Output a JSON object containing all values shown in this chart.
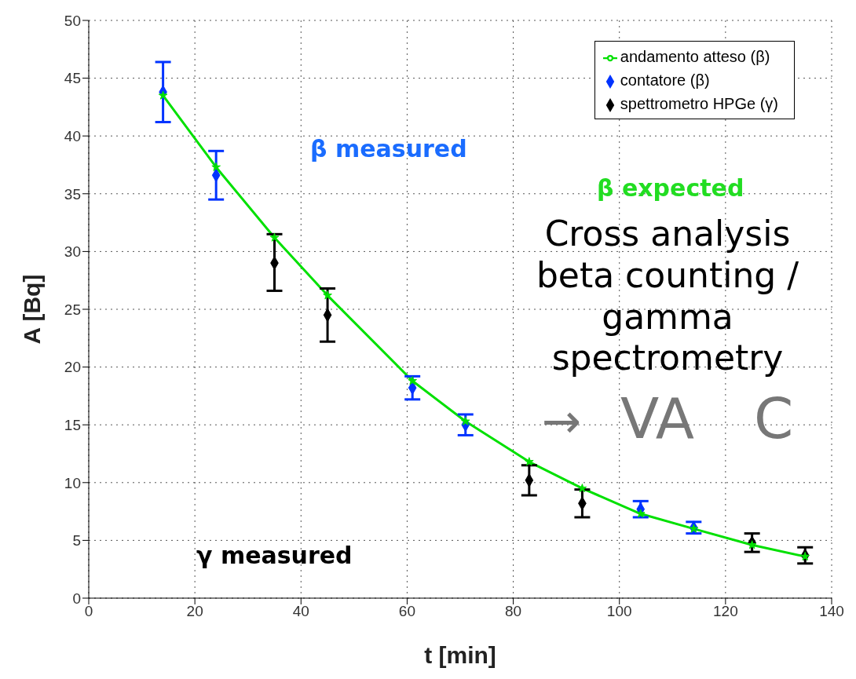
{
  "chart_data": {
    "type": "scatter",
    "xlabel": "t [min]",
    "ylabel": "A [Bq]",
    "xlim": [
      0,
      140
    ],
    "xticks": [
      0,
      20,
      40,
      60,
      80,
      100,
      120,
      140
    ],
    "ylim": [
      0,
      50
    ],
    "yticks": [
      0,
      5,
      10,
      15,
      20,
      25,
      30,
      35,
      40,
      45,
      50
    ],
    "grid": true,
    "legend": "top right",
    "series": [
      {
        "name": "andamento atteso (β)",
        "type": "line",
        "color": "#00e000",
        "marker": "star",
        "line_style": "solid",
        "x": [
          14,
          24,
          35,
          45,
          61,
          71,
          83,
          93,
          104,
          114,
          125,
          135
        ],
        "values": [
          43.5,
          37.3,
          31.2,
          26.2,
          18.8,
          15.3,
          11.8,
          9.5,
          7.3,
          6.0,
          4.6,
          3.6
        ]
      },
      {
        "name": "spettrometro HPGe (γ)",
        "color": "#000000",
        "marker": "diamond",
        "x": [
          35,
          45,
          83,
          93,
          125,
          135
        ],
        "values": [
          29.0,
          24.5,
          10.2,
          8.2,
          4.8,
          3.7
        ],
        "errors": [
          [
            26.6,
            31.5
          ],
          [
            22.2,
            26.8
          ],
          [
            8.9,
            11.5
          ],
          [
            7.0,
            9.4
          ],
          [
            4.0,
            5.6
          ],
          [
            3.0,
            4.4
          ]
        ]
      },
      {
        "name": "contatore (β)",
        "color": "#0033ff",
        "marker": "diamond",
        "x": [
          14,
          24,
          61,
          71,
          104,
          114
        ],
        "values": [
          43.8,
          36.6,
          18.2,
          15.0,
          7.7,
          6.1
        ],
        "errors": [
          [
            41.2,
            46.4
          ],
          [
            34.5,
            38.7
          ],
          [
            17.2,
            19.2
          ],
          [
            14.1,
            15.9
          ],
          [
            7.0,
            8.4
          ],
          [
            5.6,
            6.6
          ]
        ]
      }
    ],
    "annotations": [
      "β measured",
      "β expected",
      "γ measured",
      "Cross analysis beta counting / gamma spectrometry",
      "→",
      "VA",
      "C"
    ]
  }
}
